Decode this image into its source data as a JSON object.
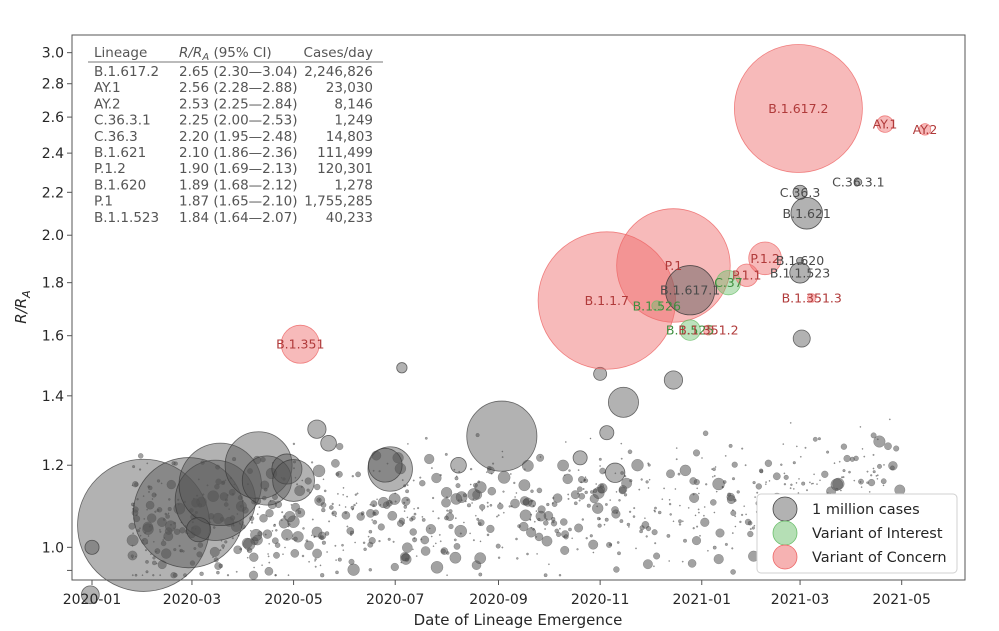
{
  "chart_data": {
    "type": "scatter",
    "xlabel": "Date of Lineage Emergence",
    "ylabel": "R/R_A",
    "ylabel_main": "R/R",
    "ylabel_sub": "A",
    "yscale": "log",
    "xlim": [
      "2019-12-20",
      "2021-06-08"
    ],
    "ylim": [
      0.93,
      3.12
    ],
    "x_ticks": [
      "2020-01",
      "2020-03",
      "2020-05",
      "2020-07",
      "2020-09",
      "2020-11",
      "2021-01",
      "2021-03",
      "2021-05"
    ],
    "y_ticks": [
      1.0,
      1.2,
      1.4,
      1.6,
      1.8,
      2.0,
      2.2,
      2.4,
      2.6,
      2.8,
      3.0
    ],
    "y_tick_labels": [
      "1.0",
      "1.2",
      "1.4",
      "1.6",
      "1.8",
      "2.0",
      "2.2",
      "2.4",
      "2.6",
      "2.8",
      "3.0"
    ],
    "table": {
      "headers": [
        "Lineage",
        "R/R_A (95% CI)",
        "Cases/day"
      ],
      "header_rr_main": "R/R",
      "header_rr_sub": "A",
      "header_rr_tail": " (95% CI)",
      "rows": [
        [
          "B.1.617.2",
          "2.65 (2.30—3.04)",
          "2,246,826"
        ],
        [
          "AY.1",
          "2.56 (2.28—2.88)",
          "23,030"
        ],
        [
          "AY.2",
          "2.53 (2.25—2.84)",
          "8,146"
        ],
        [
          "C.36.3.1",
          "2.25 (2.00—2.53)",
          "1,249"
        ],
        [
          "C.36.3",
          "2.20 (1.95—2.48)",
          "14,803"
        ],
        [
          "B.1.621",
          "2.10 (1.86—2.36)",
          "111,499"
        ],
        [
          "P.1.2",
          "1.90 (1.69—2.13)",
          "120,301"
        ],
        [
          "B.1.620",
          "1.89 (1.68—2.12)",
          "1,278"
        ],
        [
          "P.1",
          "1.87 (1.65—2.10)",
          "1,755,285"
        ],
        [
          "B.1.1.523",
          "1.84 (1.64—2.07)",
          "40,233"
        ]
      ]
    },
    "legend": {
      "position": "lower-right",
      "items": [
        {
          "label": "1 million cases",
          "category": "other"
        },
        {
          "label": "Variant of Interest",
          "category": "voi"
        },
        {
          "label": "Variant of Concern",
          "category": "voc"
        }
      ]
    },
    "category_colors": {
      "other": "#555555",
      "voi": "#6cbf6c",
      "voc": "#ee6666"
    },
    "labeled_points": [
      {
        "label": "B.1.617.2",
        "date": "2021-02-28",
        "r": 2.65,
        "cases_per_day": 2246826,
        "category": "voc"
      },
      {
        "label": "AY.1",
        "date": "2021-04-21",
        "r": 2.56,
        "cases_per_day": 23030,
        "category": "voc"
      },
      {
        "label": "AY.2",
        "date": "2021-05-15",
        "r": 2.53,
        "cases_per_day": 8146,
        "category": "voc"
      },
      {
        "label": "C.36.3.1",
        "date": "2021-04-05",
        "r": 2.25,
        "cases_per_day": 1249,
        "category": "other"
      },
      {
        "label": "C.36.3",
        "date": "2021-03-01",
        "r": 2.2,
        "cases_per_day": 14803,
        "category": "other"
      },
      {
        "label": "B.1.621",
        "date": "2021-03-05",
        "r": 2.1,
        "cases_per_day": 111499,
        "category": "other"
      },
      {
        "label": "P.1.2",
        "date": "2021-02-08",
        "r": 1.9,
        "cases_per_day": 120301,
        "category": "voc"
      },
      {
        "label": "B.1.620",
        "date": "2021-03-01",
        "r": 1.89,
        "cases_per_day": 1278,
        "category": "other"
      },
      {
        "label": "P.1",
        "date": "2020-12-15",
        "r": 1.87,
        "cases_per_day": 1755285,
        "category": "voc"
      },
      {
        "label": "B.1.1.523",
        "date": "2021-03-01",
        "r": 1.84,
        "cases_per_day": 40233,
        "category": "other"
      },
      {
        "label": "B.1.1.7",
        "date": "2020-11-05",
        "r": 1.73,
        "cases_per_day": 2600000,
        "category": "voc"
      },
      {
        "label": "B.1.617.1",
        "date": "2020-12-25",
        "r": 1.77,
        "cases_per_day": 300000,
        "category": "other"
      },
      {
        "label": "P.1.1",
        "date": "2021-01-28",
        "r": 1.83,
        "cases_per_day": 50000,
        "category": "voc"
      },
      {
        "label": "C.37",
        "date": "2021-01-17",
        "r": 1.8,
        "cases_per_day": 60000,
        "category": "voi"
      },
      {
        "label": "B.1.526",
        "date": "2020-12-05",
        "r": 1.71,
        "cases_per_day": 5000,
        "category": "voi"
      },
      {
        "label": "B.1.525",
        "date": "2020-12-25",
        "r": 1.62,
        "cases_per_day": 40000,
        "category": "voi"
      },
      {
        "label": "B.1.351.2",
        "date": "2021-01-05",
        "r": 1.62,
        "cases_per_day": 5000,
        "category": "voc"
      },
      {
        "label": "B.1.351.3",
        "date": "2021-03-08",
        "r": 1.74,
        "cases_per_day": 3000,
        "category": "voc"
      },
      {
        "label": "B.1.351",
        "date": "2020-05-05",
        "r": 1.57,
        "cases_per_day": 170000,
        "category": "voc"
      }
    ],
    "large_background_points": [
      {
        "date": "2020-02-01",
        "r": 1.05,
        "cases_per_day": 2400000
      },
      {
        "date": "2020-02-28",
        "r": 1.08,
        "cases_per_day": 1650000
      },
      {
        "date": "2020-03-15",
        "r": 1.11,
        "cases_per_day": 850000
      },
      {
        "date": "2020-03-18",
        "r": 1.15,
        "cases_per_day": 900000
      },
      {
        "date": "2020-04-10",
        "r": 1.2,
        "cases_per_day": 580000
      },
      {
        "date": "2020-04-15",
        "r": 1.16,
        "cases_per_day": 300000
      },
      {
        "date": "2020-04-27",
        "r": 1.19,
        "cases_per_day": 100000
      },
      {
        "date": "2020-05-01",
        "r": 1.16,
        "cases_per_day": 210000
      },
      {
        "date": "2020-06-28",
        "r": 1.19,
        "cases_per_day": 240000
      },
      {
        "date": "2020-06-25",
        "r": 1.2,
        "cases_per_day": 130000
      },
      {
        "date": "2020-09-03",
        "r": 1.28,
        "cases_per_day": 640000
      },
      {
        "date": "2020-11-15",
        "r": 1.38,
        "cases_per_day": 100000
      },
      {
        "date": "2020-12-15",
        "r": 1.45,
        "cases_per_day": 30000
      },
      {
        "date": "2021-03-02",
        "r": 1.59,
        "cases_per_day": 25000
      },
      {
        "date": "2020-05-15",
        "r": 1.3,
        "cases_per_day": 30000
      },
      {
        "date": "2020-05-22",
        "r": 1.26,
        "cases_per_day": 20000
      },
      {
        "date": "2020-03-05",
        "r": 1.04,
        "cases_per_day": 60000
      },
      {
        "date": "2019-12-31",
        "r": 0.9,
        "cases_per_day": 28000
      },
      {
        "date": "2020-01-01",
        "r": 1.0,
        "cases_per_day": 15000
      },
      {
        "date": "2020-11-01",
        "r": 1.47,
        "cases_per_day": 12000
      },
      {
        "date": "2020-11-10",
        "r": 1.18,
        "cases_per_day": 35000
      },
      {
        "date": "2020-11-05",
        "r": 1.29,
        "cases_per_day": 15000
      },
      {
        "date": "2020-10-20",
        "r": 1.22,
        "cases_per_day": 15000
      },
      {
        "date": "2020-07-05",
        "r": 1.49,
        "cases_per_day": 6000
      },
      {
        "date": "2020-08-08",
        "r": 1.2,
        "cases_per_day": 20000
      }
    ]
  }
}
